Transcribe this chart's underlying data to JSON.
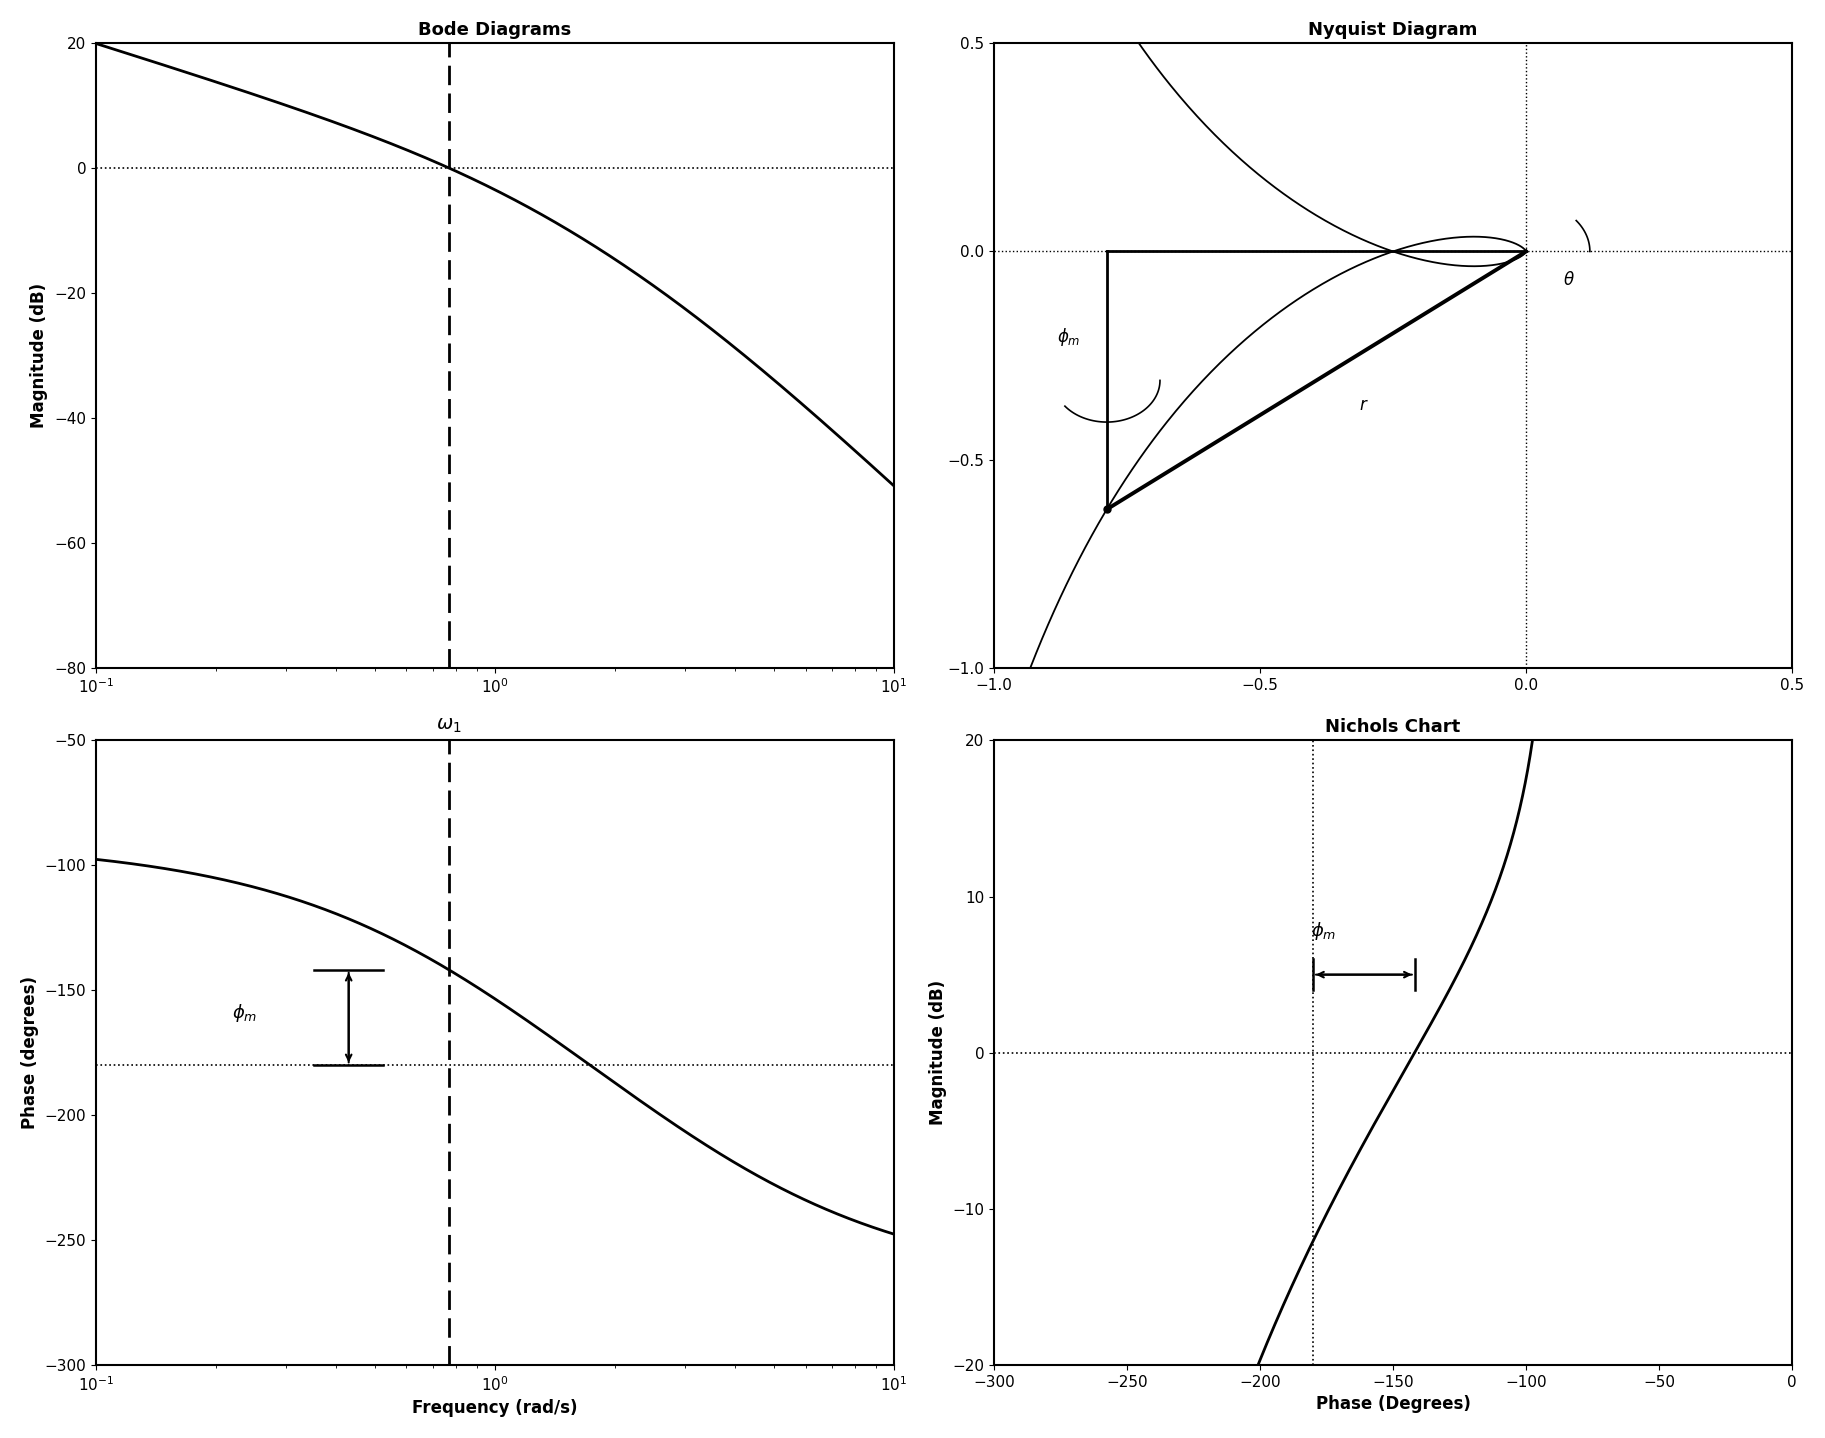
{
  "bode_mag_ylim": [
    -80,
    20
  ],
  "bode_mag_yticks": [
    -80,
    -60,
    -40,
    -20,
    0,
    20
  ],
  "bode_phase_ylim": [
    -300,
    -50
  ],
  "bode_phase_yticks": [
    -300,
    -250,
    -200,
    -150,
    -100,
    -50
  ],
  "bode_xlim": [
    0.1,
    10
  ],
  "nyquist_xlim": [
    -1.0,
    0.5
  ],
  "nyquist_ylim": [
    -1.0,
    0.5
  ],
  "nichols_xlim": [
    -300,
    0
  ],
  "nichols_ylim": [
    -20,
    20
  ],
  "background_color": "#ffffff",
  "line_color": "#000000",
  "title_fontsize": 13,
  "label_fontsize": 12,
  "tick_fontsize": 11
}
